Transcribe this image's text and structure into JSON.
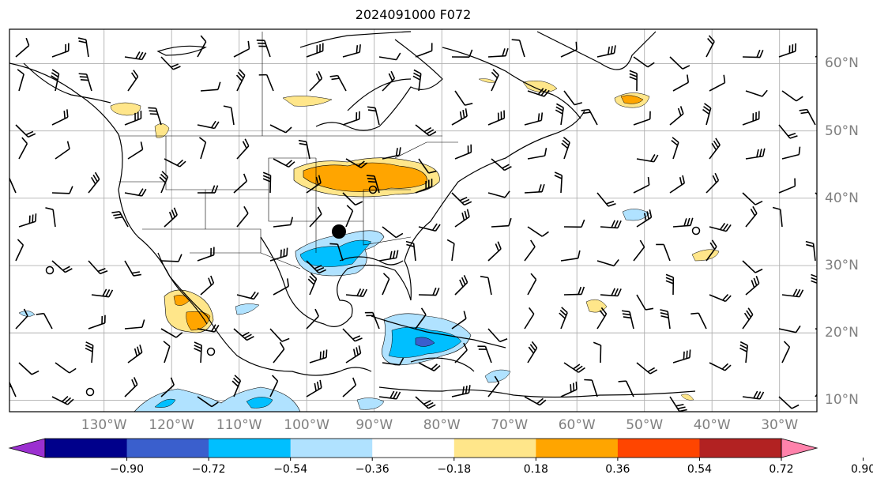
{
  "title": "2024091000 F072",
  "lon_labels": [
    "130°W",
    "120°W",
    "110°W",
    "100°W",
    "90°W",
    "80°W",
    "70°W",
    "60°W",
    "50°W",
    "40°W",
    "30°W"
  ],
  "lat_labels": [
    "60°N",
    "50°N",
    "40°N",
    "30°N",
    "20°N",
    "10°N"
  ],
  "colorbar": {
    "ticks": [
      "−0.90",
      "−0.72",
      "−0.54",
      "−0.36",
      "−0.18",
      "0.18",
      "0.36",
      "0.54",
      "0.72",
      "0.90"
    ],
    "colors": [
      "#9b30d0",
      "#00008b",
      "#3a5fcd",
      "#00bfff",
      "#b0e2ff",
      "#ffffff",
      "#ffe68a",
      "#ffa500",
      "#ff4500",
      "#b22222",
      "#ff82ab"
    ]
  },
  "colors": {
    "grid": "#b0b0b0",
    "coast": "#000000",
    "label": "#808080"
  },
  "marker": {
    "name": "station",
    "lon": "-90",
    "lat": "35"
  }
}
